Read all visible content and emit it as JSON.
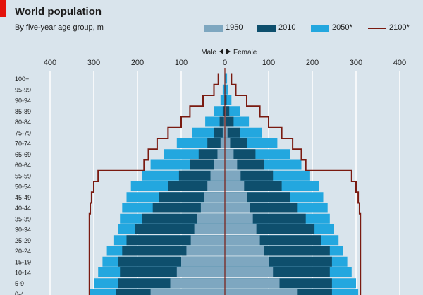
{
  "header": {
    "title": "World population",
    "subtitle": "By five-year age group, m"
  },
  "colors": {
    "background": "#d9e4ec",
    "y1950": "#7ea7c0",
    "y2010": "#0e4f6d",
    "y2050": "#23a7df",
    "y2100": "#7a1a10",
    "accent": "#e3120b"
  },
  "chart_data": {
    "type": "bar",
    "subtype": "population-pyramid",
    "title": "World population",
    "subtitle": "By five-year age group, m",
    "left_label": "Male",
    "right_label": "Female",
    "xlim": [
      -400,
      400
    ],
    "xticks": [
      -400,
      -300,
      -200,
      -100,
      0,
      100,
      200,
      300,
      400
    ],
    "xtick_labels": [
      "400",
      "300",
      "200",
      "100",
      "0",
      "100",
      "200",
      "300",
      "400"
    ],
    "categories": [
      "100+",
      "95-99",
      "90-94",
      "85-89",
      "80-84",
      "75-79",
      "70-74",
      "65-69",
      "60-64",
      "55-59",
      "50-54",
      "45-49",
      "40-44",
      "35-39",
      "30-34",
      "25-29",
      "20-24",
      "15-19",
      "10-14",
      "5-9",
      "0-4"
    ],
    "series": [
      {
        "name": "1950",
        "style": "bar",
        "male": [
          0,
          0,
          0,
          0,
          2,
          5,
          10,
          17,
          25,
          33,
          40,
          48,
          55,
          63,
          70,
          78,
          88,
          100,
          110,
          125,
          170
        ],
        "female": [
          0,
          0,
          0,
          2,
          3,
          6,
          12,
          20,
          28,
          36,
          44,
          50,
          58,
          64,
          72,
          80,
          90,
          100,
          110,
          125,
          165
        ]
      },
      {
        "name": "2010",
        "style": "bar",
        "male": [
          0,
          0,
          1,
          5,
          12,
          25,
          40,
          60,
          80,
          105,
          130,
          150,
          165,
          190,
          205,
          225,
          235,
          245,
          240,
          245,
          250
        ],
        "female": [
          0,
          1,
          4,
          10,
          20,
          35,
          50,
          70,
          90,
          110,
          130,
          150,
          165,
          185,
          205,
          220,
          240,
          245,
          240,
          245,
          245
        ]
      },
      {
        "name": "2050*",
        "style": "bar",
        "male": [
          0,
          5,
          10,
          25,
          45,
          75,
          110,
          140,
          170,
          190,
          215,
          225,
          235,
          240,
          245,
          255,
          270,
          280,
          290,
          300,
          310
        ],
        "female": [
          5,
          8,
          15,
          35,
          55,
          85,
          120,
          150,
          175,
          195,
          215,
          225,
          235,
          240,
          250,
          260,
          270,
          280,
          290,
          300,
          305
        ]
      },
      {
        "name": "2100*",
        "style": "step-line",
        "male": [
          15,
          25,
          50,
          80,
          100,
          130,
          155,
          175,
          185,
          290,
          300,
          305,
          308,
          310,
          310,
          310,
          310,
          310,
          310,
          310,
          310
        ],
        "female": [
          15,
          25,
          50,
          80,
          100,
          130,
          155,
          175,
          185,
          290,
          300,
          305,
          308,
          310,
          310,
          310,
          310,
          310,
          310,
          310,
          310
        ]
      }
    ]
  }
}
